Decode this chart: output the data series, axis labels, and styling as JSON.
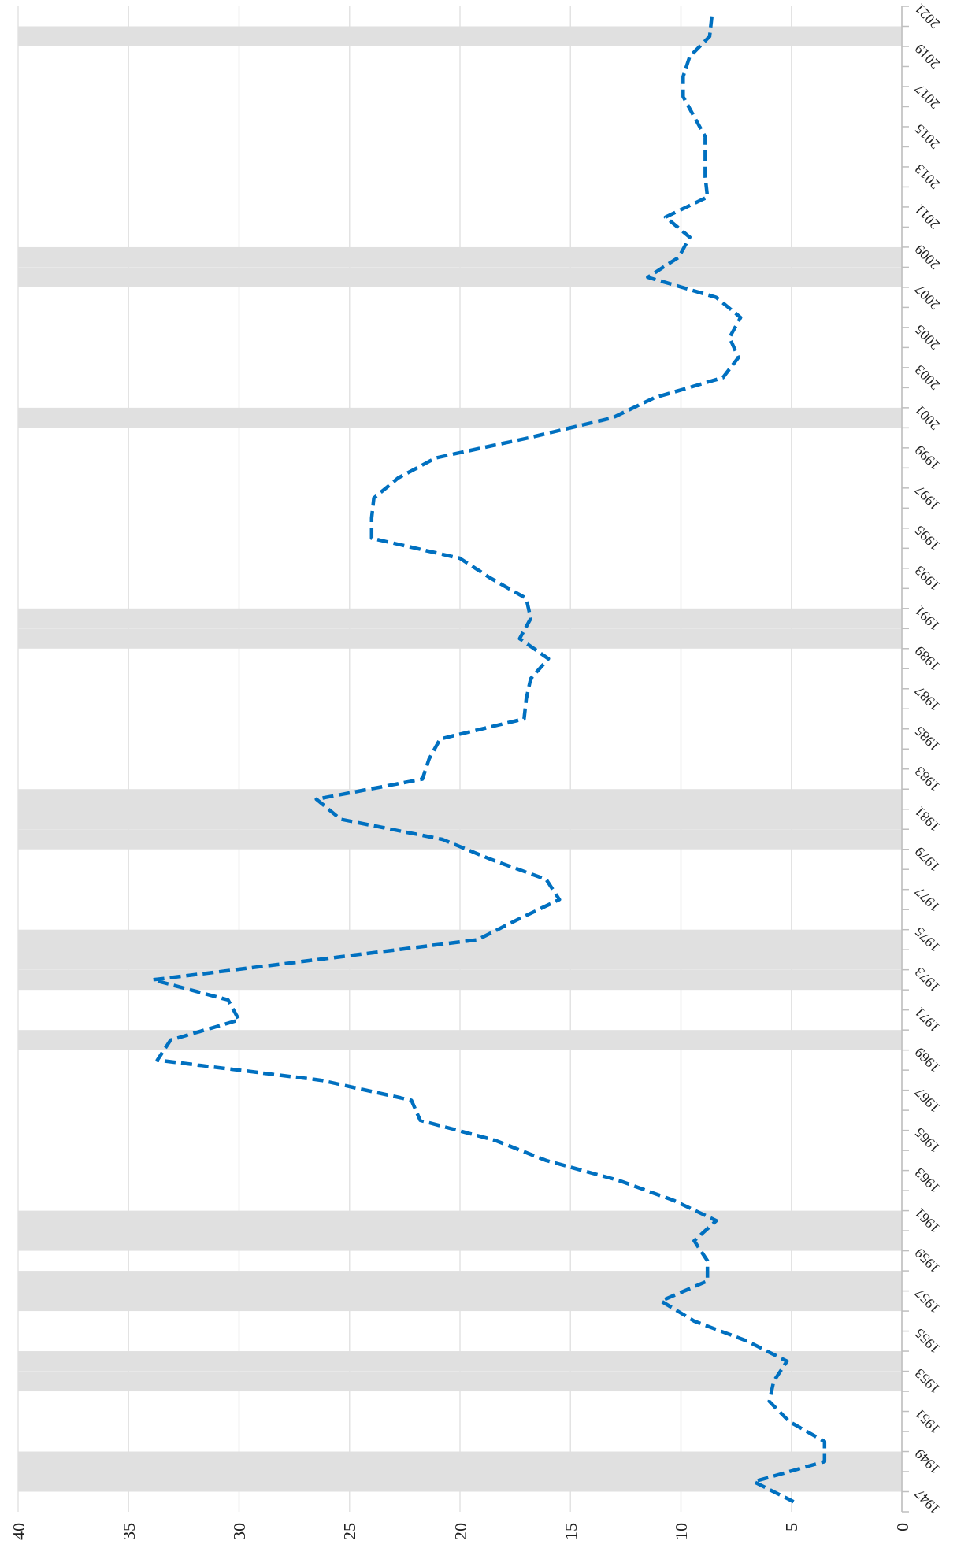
{
  "chart_data": {
    "type": "line",
    "orientation": "horizontal",
    "categories": [
      "2021",
      null,
      "2019",
      null,
      "2017",
      null,
      "2015",
      null,
      "2013",
      null,
      "2011",
      null,
      "2009",
      null,
      "2007",
      null,
      "2005",
      null,
      "2003",
      null,
      "2001",
      null,
      "1999",
      null,
      "1997",
      null,
      "1995",
      null,
      "1993",
      null,
      "1991",
      null,
      "1989",
      null,
      "1987",
      null,
      "1985",
      null,
      "1983",
      null,
      "1981",
      null,
      "1979",
      null,
      "1977",
      null,
      "1975",
      null,
      "1973",
      null,
      "1971",
      null,
      "1969",
      null,
      "1967",
      null,
      "1965",
      null,
      "1963",
      null,
      "1961",
      null,
      "1959",
      null,
      "1957",
      null,
      "1955",
      null,
      "1953",
      null,
      "1951",
      null,
      "1949",
      null,
      "1947"
    ],
    "series": [
      {
        "type": "bar",
        "color": "#e0e0e0",
        "values": [
          null,
          40,
          null,
          null,
          null,
          null,
          null,
          null,
          null,
          null,
          null,
          null,
          40,
          40,
          null,
          null,
          null,
          null,
          null,
          null,
          40,
          null,
          null,
          null,
          null,
          null,
          null,
          null,
          null,
          null,
          40,
          40,
          null,
          null,
          null,
          null,
          null,
          null,
          null,
          40,
          40,
          40,
          null,
          null,
          null,
          null,
          40,
          40,
          40,
          null,
          null,
          40,
          null,
          null,
          null,
          null,
          null,
          null,
          null,
          null,
          40,
          40,
          null,
          40,
          40,
          null,
          null,
          40,
          40,
          null,
          null,
          null,
          40,
          40,
          null
        ]
      },
      {
        "color": "#0070c0",
        "values": [
          8.6,
          8.7,
          9.6,
          9.9,
          9.9,
          9.4,
          8.9,
          8.9,
          8.9,
          8.8,
          10.7,
          9.6,
          10.1,
          11.5,
          8.4,
          7.3,
          7.8,
          7.4,
          8.1,
          11.2,
          13.1,
          16.9,
          21.1,
          22.8,
          23.9,
          24.0,
          24.0,
          20.0,
          18.6,
          17.0,
          16.8,
          17.3,
          16.0,
          16.8,
          17.0,
          17.1,
          20.9,
          21.4,
          21.7,
          26.5,
          25.4,
          20.8,
          18.6,
          16.1,
          15.5,
          17.4,
          19.2,
          26.5,
          33.9,
          30.5,
          30.0,
          33.1,
          33.7,
          26.3,
          22.2,
          21.8,
          18.4,
          16.1,
          12.8,
          10.3,
          8.4,
          9.4,
          8.8,
          8.8,
          10.9,
          9.4,
          7.0,
          5.2,
          5.8,
          6.0,
          5.1,
          3.5,
          3.5,
          6.7,
          4.9
        ]
      }
    ],
    "xlim": [
      40,
      0
    ],
    "xticks": [
      0,
      5,
      10,
      15,
      20,
      25,
      30,
      35,
      40
    ],
    "grid": "x",
    "line_style": "dashed"
  }
}
